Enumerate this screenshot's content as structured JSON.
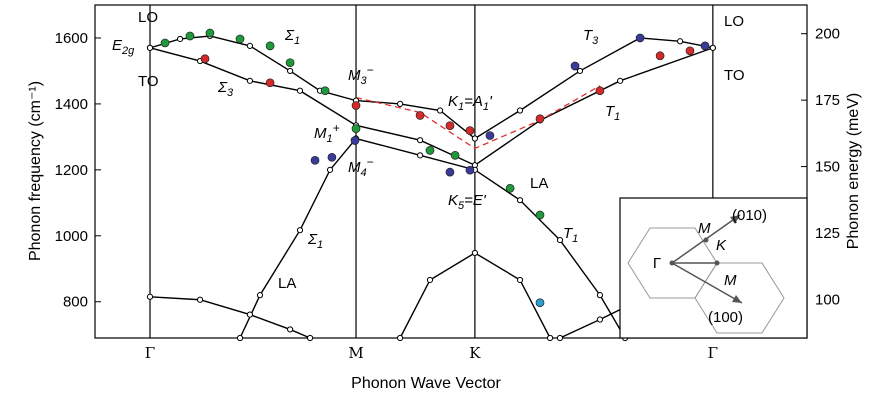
{
  "chart_data": {
    "type": "line",
    "x_label": "Phonon Wave Vector",
    "y_label": "Phonon frequency (cm⁻¹)",
    "y2_label": "Phonon energy (meV)",
    "xlim": [
      -0.267,
      3.189
    ],
    "xticks": [
      {
        "value": 0,
        "label": "Γ"
      },
      {
        "value": 1,
        "label": "M"
      },
      {
        "value": 1.577,
        "label": "K"
      },
      {
        "value": 2.732,
        "label": "Γ"
      }
    ],
    "ylim": [
      690,
      1700
    ],
    "yticks": [
      800,
      1000,
      1200,
      1400,
      1600
    ],
    "y2lim": [
      85.5,
      210.8
    ],
    "y2ticks": [
      100,
      125,
      150,
      175,
      200
    ],
    "series": [
      {
        "mode": "line",
        "color": "#000000",
        "x": [
          0,
          0.146,
          0.291,
          0.485,
          0.68,
          0.825,
          1,
          1.214,
          1.408,
          1.577,
          1.796,
          2.087,
          2.379,
          2.573,
          2.732
        ],
        "values": [
          1570,
          1597,
          1606,
          1576,
          1500,
          1440,
          1410,
          1400,
          1380,
          1295,
          1380,
          1500,
          1600,
          1590,
          1570
        ]
      },
      {
        "mode": "line",
        "color": "#000000",
        "x": [
          0,
          0.243,
          0.485,
          0.728,
          1,
          1.311,
          1.577,
          1.893,
          2.282,
          2.732
        ],
        "values": [
          1570,
          1530,
          1470,
          1440,
          1335,
          1290,
          1214,
          1350,
          1470,
          1570
        ]
      },
      {
        "mode": "line",
        "color": "#000000",
        "x": [
          0.437,
          0.534,
          0.728,
          0.874,
          1,
          1.311,
          1.577,
          1.796,
          1.99,
          2.184,
          2.306
        ],
        "values": [
          690,
          820,
          1017,
          1200,
          1295,
          1244,
          1200,
          1108,
          987,
          820,
          690
        ]
      },
      {
        "mode": "line",
        "color": "#000000",
        "x": [
          0,
          0.243,
          0.485,
          0.68,
          0.777
        ],
        "values": [
          815,
          806,
          761,
          716,
          690
        ]
      },
      {
        "mode": "line",
        "color": "#000000",
        "x": [
          1.214,
          1.359,
          1.577,
          1.796,
          1.942
        ],
        "values": [
          690,
          866,
          948,
          866,
          690
        ]
      },
      {
        "mode": "line",
        "color": "#000000",
        "x": [
          1.99,
          2.184,
          2.379,
          2.621
        ],
        "values": [
          690,
          746,
          806,
          820
        ]
      },
      {
        "mode": "dashed",
        "color": "#e03030",
        "x": [
          1,
          1.311,
          1.577,
          1.893,
          2.184
        ],
        "values": [
          1419,
          1374,
          1265,
          1350,
          1455
        ]
      },
      {
        "mode": "points",
        "color": "#1f9a3a",
        "x": [
          0.073,
          0.194,
          0.291,
          0.437,
          0.583,
          0.68,
          0.85,
          1,
          1.359,
          1.481,
          1.748,
          1.893
        ],
        "values": [
          1585,
          1606,
          1615,
          1597,
          1576,
          1525,
          1440,
          1325,
          1259,
          1244,
          1144,
          1063
        ]
      },
      {
        "mode": "points",
        "color": "#d42a2a",
        "x": [
          0.267,
          0.583,
          1,
          1.311,
          1.456,
          1.553,
          1.893,
          2.184,
          2.476,
          2.621
        ],
        "values": [
          1537,
          1464,
          1395,
          1365,
          1334,
          1319,
          1355,
          1440,
          1546,
          1561
        ]
      },
      {
        "mode": "points",
        "color": "#3a3a9a",
        "x": [
          0.801,
          0.883,
          0.995,
          1.456,
          1.553,
          1.65,
          2.063,
          2.379,
          2.694
        ],
        "values": [
          1229,
          1238,
          1289,
          1193,
          1199,
          1304,
          1515,
          1600,
          1576
        ]
      },
      {
        "mode": "points",
        "color": "#2aa0d0",
        "x": [
          1.893
        ],
        "values": [
          797
        ]
      }
    ],
    "annotations": [
      {
        "segments": [
          {
            "text": "LO"
          }
        ]
      },
      {
        "segments": [
          {
            "text": "E"
          },
          {
            "sub": "2g"
          }
        ]
      },
      {
        "segments": [
          {
            "text": "TO"
          }
        ]
      },
      {
        "segments": [
          {
            "text": "Σ"
          },
          {
            "sub": "1"
          }
        ]
      },
      {
        "segments": [
          {
            "text": "Σ"
          },
          {
            "sub": "3"
          }
        ]
      },
      {
        "segments": [
          {
            "text": "M"
          },
          {
            "sub": "3"
          },
          {
            "sup": "−"
          }
        ]
      },
      {
        "segments": [
          {
            "text": "M"
          },
          {
            "sub": "1"
          },
          {
            "sup": "+"
          }
        ]
      },
      {
        "segments": [
          {
            "text": "M"
          },
          {
            "sub": "4"
          },
          {
            "sup": "−"
          }
        ]
      },
      {
        "segments": [
          {
            "text": "K"
          },
          {
            "sub": "1"
          },
          {
            "text": "=A"
          },
          {
            "sub": "1"
          },
          {
            "text": "'"
          }
        ]
      },
      {
        "segments": [
          {
            "text": "K"
          },
          {
            "sub": "5"
          },
          {
            "text": "=E'"
          }
        ]
      },
      {
        "segments": [
          {
            "text": "LA"
          }
        ]
      },
      {
        "segments": [
          {
            "text": "T"
          },
          {
            "sub": "1"
          }
        ]
      },
      {
        "segments": [
          {
            "text": "Σ"
          },
          {
            "sub": "1"
          }
        ]
      },
      {
        "segments": [
          {
            "text": "LA"
          }
        ]
      },
      {
        "segments": [
          {
            "text": "T"
          },
          {
            "sub": "3"
          }
        ]
      },
      {
        "segments": [
          {
            "text": "T"
          },
          {
            "sub": "1"
          }
        ]
      },
      {
        "segments": [
          {
            "text": "LO"
          }
        ]
      },
      {
        "segments": [
          {
            "text": "TO"
          }
        ]
      }
    ],
    "inset_labels": [
      "M",
      "(010)",
      "K",
      "Γ",
      "M",
      "(100)"
    ]
  }
}
